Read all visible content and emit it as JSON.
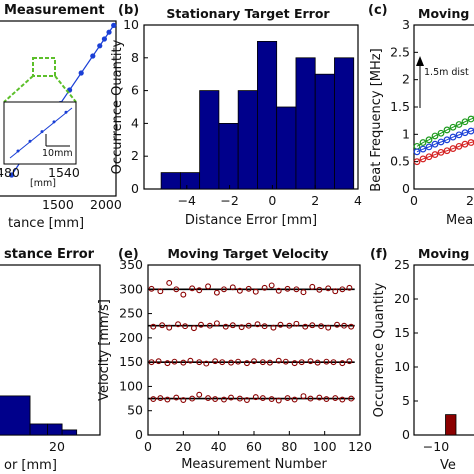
{
  "colors": {
    "navy": "#00008B",
    "darkred": "#8B0000",
    "blue": "#1a3fd6",
    "green": "#1b9a1b",
    "red": "#d42020",
    "black": "#000000"
  },
  "chart_data": [
    {
      "panel": "(a)",
      "type": "scatter",
      "title": "Measurement",
      "xlabel": "tance [mm]",
      "x_ticks": [
        "1500",
        "2000"
      ],
      "xlim": [
        1000,
        2000
      ],
      "ylim": [
        1000,
        2000
      ],
      "x": [
        1100,
        1200,
        1300,
        1400,
        1480,
        1520,
        1600,
        1700,
        1800,
        1860,
        1900,
        1940,
        1980
      ],
      "y": [
        1100,
        1200,
        1300,
        1400,
        1480,
        1520,
        1600,
        1700,
        1800,
        1860,
        1900,
        1940,
        1980
      ],
      "inset": {
        "x_ticks": [
          "480",
          "1540"
        ],
        "xlabel": "[mm]",
        "scale_bar": "10mm"
      }
    },
    {
      "panel": "(b)",
      "type": "bar",
      "title": "Stationary Target Error",
      "xlabel": "Distance Error [mm]",
      "ylabel": "Occurrence Quantity",
      "xlim": [
        -6,
        4
      ],
      "ylim": [
        0,
        10
      ],
      "x_ticks": [
        "−4",
        "−2",
        "0",
        "2",
        "4"
      ],
      "y_ticks": [
        "0",
        "2",
        "4",
        "6",
        "8",
        "10"
      ],
      "bin_edges": [
        -5.2,
        -4.3,
        -3.4,
        -2.5,
        -1.6,
        -0.7,
        0.2,
        1.1,
        2.0,
        2.9,
        3.8
      ],
      "values": [
        1,
        1,
        6,
        4,
        6,
        9,
        5,
        8,
        7,
        8
      ]
    },
    {
      "panel": "(c)",
      "type": "scatter",
      "title": "Moving",
      "xlabel": "Mea",
      "ylabel": "Beat Frequency [MHz]",
      "xlim": [
        0,
        30
      ],
      "ylim": [
        0,
        3
      ],
      "x_ticks": [
        "0",
        "20"
      ],
      "y_ticks": [
        "0",
        "0.5",
        "1",
        "1.5",
        "2",
        "2.5",
        "3"
      ],
      "annotation": "1.5m dist",
      "series": [
        {
          "color": "green",
          "x": [
            1,
            3,
            5,
            7,
            9,
            11,
            13,
            15,
            17,
            19,
            21,
            23,
            25,
            27,
            29
          ],
          "y": [
            0.78,
            0.85,
            0.9,
            0.97,
            1.02,
            1.08,
            1.13,
            1.18,
            1.23,
            1.28,
            1.32,
            1.37,
            1.41,
            1.46,
            1.5
          ]
        },
        {
          "color": "blue",
          "x": [
            1,
            3,
            5,
            7,
            9,
            11,
            13,
            15,
            17,
            19,
            21,
            23,
            25,
            27,
            29
          ],
          "y": [
            0.68,
            0.73,
            0.77,
            0.82,
            0.86,
            0.9,
            0.95,
            0.99,
            1.03,
            1.06,
            1.1,
            1.14,
            1.18,
            1.21,
            1.25
          ]
        },
        {
          "color": "red",
          "x": [
            1,
            3,
            5,
            7,
            9,
            11,
            13,
            15,
            17,
            19,
            21,
            23,
            25,
            27,
            29
          ],
          "y": [
            0.5,
            0.55,
            0.59,
            0.63,
            0.67,
            0.7,
            0.74,
            0.78,
            0.82,
            0.85,
            0.88,
            0.92,
            0.96,
            0.99,
            1.02
          ]
        }
      ]
    },
    {
      "panel": "(d)",
      "type": "bar",
      "title": "stance Error",
      "xlabel": "or [mm]",
      "xlim": [
        -5,
        30
      ],
      "ylim": [
        0,
        10
      ],
      "x_ticks": [
        "20"
      ],
      "bin_edges": [
        -5,
        6,
        12,
        17,
        22
      ],
      "values": [
        2.3,
        0.65,
        0.65,
        0.3
      ]
    },
    {
      "panel": "(e)",
      "type": "scatter",
      "title": "Moving Target Velocity",
      "xlabel": "Measurement Number",
      "ylabel": "Velocity [mm/s]",
      "xlim": [
        0,
        120
      ],
      "ylim": [
        0,
        350
      ],
      "x_ticks": [
        "0",
        "20",
        "40",
        "60",
        "80",
        "100",
        "120"
      ],
      "y_ticks": [
        "0",
        "50",
        "100",
        "150",
        "200",
        "250",
        "300",
        "350"
      ],
      "reference_lines": [
        75,
        150,
        225,
        300
      ],
      "series": [
        {
          "name_level": 300,
          "x": [
            2,
            7,
            12,
            16,
            20,
            25,
            29,
            34,
            39,
            43,
            48,
            52,
            57,
            61,
            66,
            70,
            74,
            79,
            84,
            88,
            93,
            97,
            102,
            106,
            110,
            114
          ],
          "y": [
            301,
            296,
            313,
            300,
            289,
            302,
            298,
            306,
            293,
            300,
            304,
            297,
            301,
            295,
            303,
            308,
            297,
            301,
            300,
            294,
            305,
            299,
            302,
            296,
            300,
            303
          ]
        },
        {
          "name_level": 225,
          "x": [
            3,
            8,
            12,
            17,
            21,
            26,
            30,
            35,
            39,
            44,
            48,
            53,
            57,
            62,
            66,
            71,
            75,
            80,
            84,
            89,
            93,
            98,
            102,
            107,
            111,
            115
          ],
          "y": [
            223,
            226,
            221,
            228,
            224,
            220,
            227,
            225,
            230,
            223,
            226,
            222,
            225,
            228,
            224,
            221,
            227,
            225,
            229,
            223,
            226,
            224,
            221,
            227,
            225,
            223
          ]
        },
        {
          "name_level": 150,
          "x": [
            2,
            6,
            11,
            15,
            20,
            24,
            29,
            33,
            38,
            42,
            47,
            51,
            56,
            60,
            65,
            69,
            74,
            78,
            83,
            87,
            92,
            96,
            101,
            105,
            110,
            114
          ],
          "y": [
            150,
            152,
            148,
            151,
            149,
            153,
            150,
            147,
            152,
            150,
            149,
            151,
            148,
            152,
            150,
            149,
            153,
            151,
            148,
            150,
            152,
            149,
            151,
            150,
            148,
            152
          ]
        },
        {
          "name_level": 75,
          "x": [
            3,
            7,
            11,
            16,
            20,
            25,
            29,
            34,
            38,
            43,
            47,
            52,
            56,
            61,
            65,
            70,
            74,
            79,
            83,
            88,
            92,
            97,
            101,
            106,
            110,
            115
          ],
          "y": [
            74,
            76,
            73,
            77,
            72,
            75,
            83,
            76,
            74,
            73,
            77,
            75,
            72,
            78,
            76,
            74,
            71,
            76,
            73,
            80,
            75,
            77,
            74,
            76,
            73,
            75
          ]
        }
      ]
    },
    {
      "panel": "(f)",
      "type": "bar",
      "title": "Moving",
      "xlabel": "Ve",
      "ylabel": "Occurrence Quantity",
      "xlim": [
        -15,
        5
      ],
      "ylim": [
        0,
        25
      ],
      "x_ticks": [
        "−10"
      ],
      "y_ticks": [
        "0",
        "5",
        "10",
        "15",
        "20",
        "25"
      ],
      "bin_edges": [
        -6,
        -3
      ],
      "values": [
        3
      ]
    }
  ]
}
